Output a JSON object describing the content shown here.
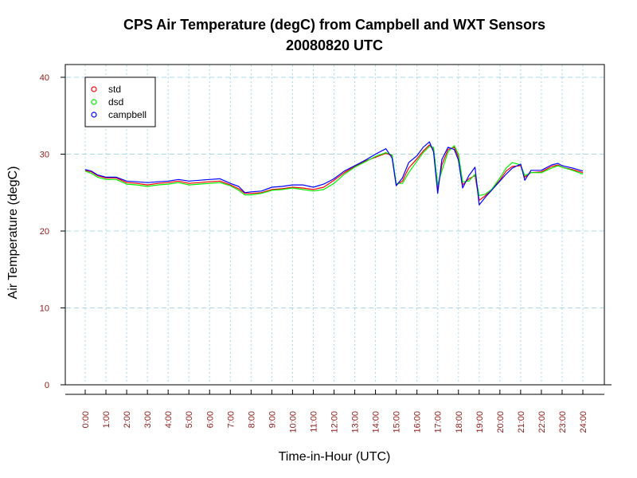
{
  "chart_data": {
    "type": "line",
    "title": "CPS Air Temperature (degC) from Campbell and WXT Sensors",
    "subtitle": "20080820  UTC",
    "xlabel": "Time-in-Hour (UTC)",
    "ylabel": "Air Temperature (degC)",
    "xlim": [
      0,
      24
    ],
    "ylim": [
      0,
      40
    ],
    "yticks": [
      0,
      10,
      20,
      30,
      40
    ],
    "xticks": [
      0,
      1,
      2,
      3,
      4,
      5,
      6,
      7,
      8,
      9,
      10,
      11,
      12,
      13,
      14,
      15,
      16,
      17,
      18,
      19,
      20,
      21,
      22,
      23,
      24
    ],
    "xtick_labels": [
      "0:00",
      "1:00",
      "2:00",
      "3:00",
      "4:00",
      "5:00",
      "6:00",
      "7:00",
      "8:00",
      "9:00",
      "10:00",
      "11:00",
      "12:00",
      "13:00",
      "14:00",
      "15:00",
      "16:00",
      "17:00",
      "18:00",
      "19:00",
      "20:00",
      "21:00",
      "22:00",
      "23:00",
      "24:00"
    ],
    "grid": true,
    "legend_position": "top-left",
    "series": [
      {
        "name": "std",
        "color": "#ff0000",
        "points": [
          [
            0,
            27.9
          ],
          [
            0.3,
            27.7
          ],
          [
            0.6,
            27.2
          ],
          [
            1,
            26.9
          ],
          [
            1.5,
            26.9
          ],
          [
            2,
            26.3
          ],
          [
            2.5,
            26.2
          ],
          [
            3,
            26.0
          ],
          [
            3.5,
            26.2
          ],
          [
            4,
            26.3
          ],
          [
            4.5,
            26.5
          ],
          [
            5,
            26.2
          ],
          [
            5.5,
            26.3
          ],
          [
            6,
            26.4
          ],
          [
            6.5,
            26.5
          ],
          [
            7,
            26.0
          ],
          [
            7.4,
            25.5
          ],
          [
            7.7,
            24.9
          ],
          [
            8,
            24.9
          ],
          [
            8.5,
            25.0
          ],
          [
            9,
            25.4
          ],
          [
            9.5,
            25.5
          ],
          [
            10,
            25.7
          ],
          [
            10.5,
            25.6
          ],
          [
            11,
            25.4
          ],
          [
            11.5,
            25.7
          ],
          [
            12,
            26.6
          ],
          [
            12.5,
            27.6
          ],
          [
            13,
            28.4
          ],
          [
            13.5,
            29.1
          ],
          [
            14,
            29.6
          ],
          [
            14.5,
            30.1
          ],
          [
            14.8,
            29.8
          ],
          [
            15,
            26.0
          ],
          [
            15.3,
            26.5
          ],
          [
            15.6,
            28.2
          ],
          [
            16,
            29.4
          ],
          [
            16.3,
            30.4
          ],
          [
            16.6,
            31.2
          ],
          [
            16.8,
            30.6
          ],
          [
            17,
            25.3
          ],
          [
            17.2,
            28.6
          ],
          [
            17.5,
            30.6
          ],
          [
            17.8,
            30.9
          ],
          [
            18,
            29.6
          ],
          [
            18.2,
            26.0
          ],
          [
            18.5,
            26.8
          ],
          [
            18.8,
            27.2
          ],
          [
            19,
            24.0
          ],
          [
            19.3,
            24.6
          ],
          [
            19.6,
            25.4
          ],
          [
            20,
            26.6
          ],
          [
            20.3,
            27.8
          ],
          [
            20.6,
            28.4
          ],
          [
            21,
            28.5
          ],
          [
            21.2,
            27.0
          ],
          [
            21.5,
            27.6
          ],
          [
            22,
            27.7
          ],
          [
            22.5,
            28.4
          ],
          [
            22.8,
            28.6
          ],
          [
            23,
            28.3
          ],
          [
            23.5,
            28.0
          ],
          [
            24,
            27.6
          ]
        ]
      },
      {
        "name": "dsd",
        "color": "#00ee00",
        "points": [
          [
            0,
            27.8
          ],
          [
            0.3,
            27.5
          ],
          [
            0.6,
            27.0
          ],
          [
            1,
            26.7
          ],
          [
            1.5,
            26.7
          ],
          [
            2,
            26.1
          ],
          [
            2.5,
            26.0
          ],
          [
            3,
            25.8
          ],
          [
            3.5,
            26.0
          ],
          [
            4,
            26.1
          ],
          [
            4.5,
            26.3
          ],
          [
            5,
            26.0
          ],
          [
            5.5,
            26.1
          ],
          [
            6,
            26.2
          ],
          [
            6.5,
            26.3
          ],
          [
            7,
            25.9
          ],
          [
            7.4,
            25.3
          ],
          [
            7.7,
            24.7
          ],
          [
            8,
            24.7
          ],
          [
            8.5,
            24.9
          ],
          [
            9,
            25.3
          ],
          [
            9.5,
            25.4
          ],
          [
            10,
            25.6
          ],
          [
            10.5,
            25.4
          ],
          [
            11,
            25.2
          ],
          [
            11.5,
            25.4
          ],
          [
            12,
            26.2
          ],
          [
            12.5,
            27.4
          ],
          [
            13,
            28.3
          ],
          [
            13.5,
            29.0
          ],
          [
            14,
            29.7
          ],
          [
            14.5,
            30.2
          ],
          [
            14.8,
            29.9
          ],
          [
            15,
            26.2
          ],
          [
            15.3,
            26.2
          ],
          [
            15.6,
            27.6
          ],
          [
            16,
            29.1
          ],
          [
            16.3,
            30.2
          ],
          [
            16.6,
            31.0
          ],
          [
            16.8,
            30.9
          ],
          [
            17,
            26.0
          ],
          [
            17.2,
            27.8
          ],
          [
            17.5,
            30.3
          ],
          [
            17.8,
            31.1
          ],
          [
            18,
            30.0
          ],
          [
            18.2,
            26.4
          ],
          [
            18.5,
            26.5
          ],
          [
            18.8,
            27.4
          ],
          [
            19,
            24.6
          ],
          [
            19.3,
            24.8
          ],
          [
            19.6,
            25.4
          ],
          [
            20,
            26.9
          ],
          [
            20.3,
            28.2
          ],
          [
            20.6,
            28.9
          ],
          [
            21,
            28.6
          ],
          [
            21.2,
            27.2
          ],
          [
            21.5,
            27.6
          ],
          [
            22,
            27.6
          ],
          [
            22.5,
            28.2
          ],
          [
            22.8,
            28.5
          ],
          [
            23,
            28.3
          ],
          [
            23.5,
            27.9
          ],
          [
            24,
            27.4
          ]
        ]
      },
      {
        "name": "campbell",
        "color": "#0000ff",
        "points": [
          [
            0,
            28.0
          ],
          [
            0.3,
            27.8
          ],
          [
            0.6,
            27.3
          ],
          [
            1,
            27.0
          ],
          [
            1.5,
            27.0
          ],
          [
            2,
            26.5
          ],
          [
            2.5,
            26.4
          ],
          [
            3,
            26.3
          ],
          [
            3.5,
            26.4
          ],
          [
            4,
            26.5
          ],
          [
            4.5,
            26.7
          ],
          [
            5,
            26.5
          ],
          [
            5.5,
            26.6
          ],
          [
            6,
            26.7
          ],
          [
            6.5,
            26.8
          ],
          [
            7,
            26.2
          ],
          [
            7.4,
            25.8
          ],
          [
            7.7,
            25.0
          ],
          [
            8,
            25.1
          ],
          [
            8.5,
            25.2
          ],
          [
            9,
            25.7
          ],
          [
            9.5,
            25.8
          ],
          [
            10,
            26.0
          ],
          [
            10.5,
            26.0
          ],
          [
            11,
            25.7
          ],
          [
            11.5,
            26.1
          ],
          [
            12,
            26.8
          ],
          [
            12.5,
            27.8
          ],
          [
            13,
            28.5
          ],
          [
            13.5,
            29.2
          ],
          [
            14,
            30.0
          ],
          [
            14.5,
            30.7
          ],
          [
            14.8,
            29.5
          ],
          [
            15,
            25.9
          ],
          [
            15.3,
            26.9
          ],
          [
            15.6,
            28.9
          ],
          [
            16,
            29.8
          ],
          [
            16.3,
            30.9
          ],
          [
            16.6,
            31.6
          ],
          [
            16.8,
            30.3
          ],
          [
            17,
            24.9
          ],
          [
            17.2,
            29.3
          ],
          [
            17.5,
            30.9
          ],
          [
            17.8,
            30.6
          ],
          [
            18,
            29.2
          ],
          [
            18.2,
            25.6
          ],
          [
            18.5,
            27.2
          ],
          [
            18.8,
            28.3
          ],
          [
            19,
            23.4
          ],
          [
            19.3,
            24.4
          ],
          [
            19.6,
            25.3
          ],
          [
            20,
            26.5
          ],
          [
            20.3,
            27.4
          ],
          [
            20.6,
            28.2
          ],
          [
            21,
            28.7
          ],
          [
            21.2,
            26.6
          ],
          [
            21.5,
            27.9
          ],
          [
            22,
            27.9
          ],
          [
            22.5,
            28.6
          ],
          [
            22.8,
            28.8
          ],
          [
            23,
            28.5
          ],
          [
            23.5,
            28.2
          ],
          [
            24,
            27.8
          ]
        ]
      }
    ]
  }
}
